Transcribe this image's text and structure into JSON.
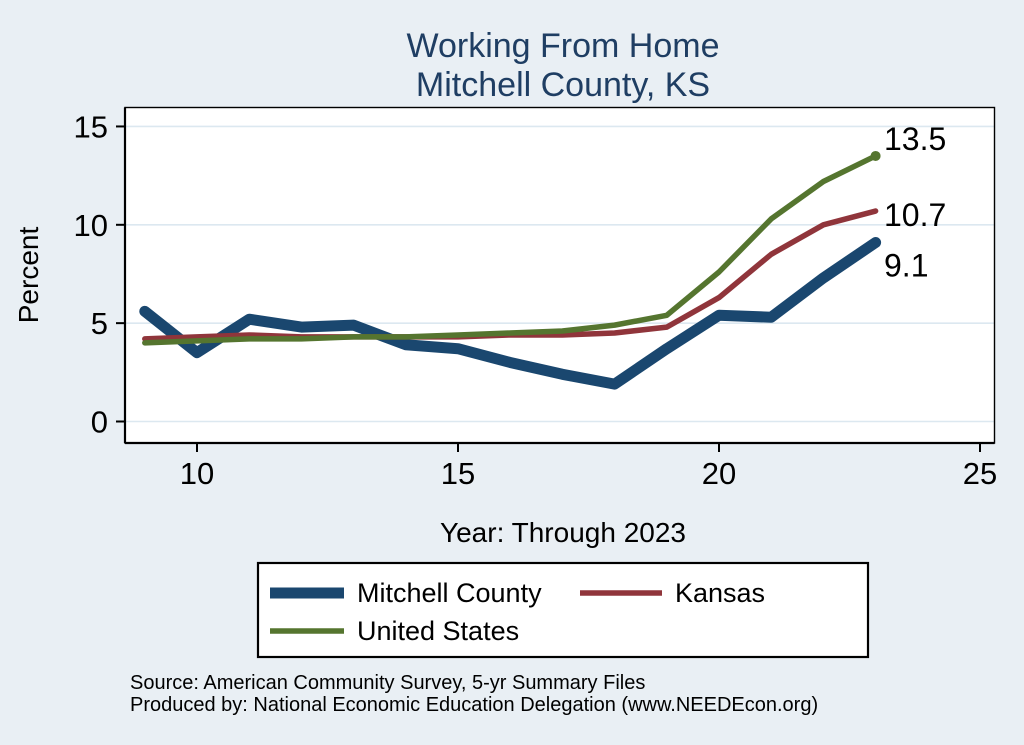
{
  "title": {
    "line1": "Working From Home",
    "line2": "Mitchell County, KS"
  },
  "colors": {
    "background": "#E9EFF4",
    "plot_background": "#FFFFFF",
    "grid": "#DCE8F0",
    "axis": "#000000",
    "title_color": "#1F3E63",
    "text": "#000000",
    "legend_background": "#FFFFFF",
    "legend_border": "#000000"
  },
  "chart_data": {
    "type": "line",
    "title": "Working From Home — Mitchell County, KS",
    "xlabel": "Year: Through 2023",
    "ylabel": "Percent",
    "x_ticks": [
      10,
      15,
      20,
      25
    ],
    "y_ticks": [
      0,
      5,
      10,
      15
    ],
    "ylim": [
      0,
      15
    ],
    "xlim_axis_units": [
      8.6,
      25.3
    ],
    "grid": "horizontal",
    "legend_position": "bottom",
    "years": [
      2009,
      2010,
      2011,
      2012,
      2013,
      2014,
      2015,
      2016,
      2017,
      2018,
      2019,
      2020,
      2021,
      2022,
      2023
    ],
    "series": [
      {
        "name": "Mitchell County",
        "color": "#1A476F",
        "emphasis": true,
        "end_label": "9.1",
        "end_dot": false,
        "values": [
          5.6,
          3.5,
          5.2,
          4.8,
          4.9,
          3.9,
          3.7,
          3.0,
          2.4,
          1.9,
          3.7,
          5.4,
          5.3,
          7.3,
          9.1
        ]
      },
      {
        "name": "Kansas",
        "color": "#90353B",
        "emphasis": false,
        "end_label": "10.7",
        "end_dot": false,
        "values": [
          4.2,
          4.3,
          4.4,
          4.3,
          4.3,
          4.3,
          4.3,
          4.4,
          4.4,
          4.5,
          4.8,
          6.3,
          8.5,
          10.0,
          10.7
        ]
      },
      {
        "name": "United States",
        "color": "#55752F",
        "emphasis": false,
        "end_label": "13.5",
        "end_dot": true,
        "values": [
          4.0,
          4.1,
          4.2,
          4.2,
          4.3,
          4.3,
          4.4,
          4.5,
          4.6,
          4.9,
          5.4,
          7.6,
          10.3,
          12.2,
          13.5
        ]
      }
    ]
  },
  "source": {
    "line1": "Source: American Community Survey, 5-yr Summary Files",
    "line2": "Produced by: National Economic Education Delegation (www.NEEDEcon.org)"
  }
}
